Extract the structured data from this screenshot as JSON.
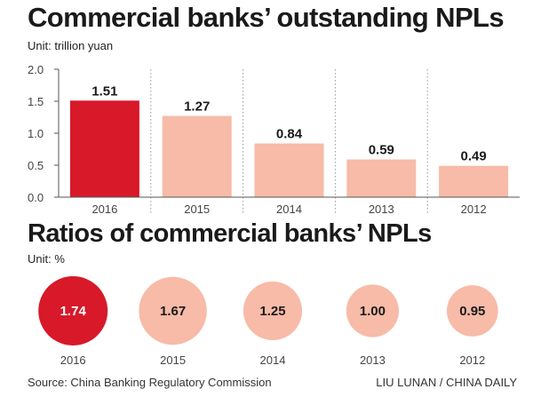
{
  "header": {
    "title_npl": "Commercial banks’ outstanding NPLs",
    "unit_npl": "Unit: trillion yuan",
    "title_ratio": "Ratios of commercial banks’ NPLs",
    "unit_ratio": "Unit: %"
  },
  "footer": {
    "source": "Source: China Banking Regulatory Commission",
    "credit": "LIU LUNAN / CHINA DAILY"
  },
  "colors": {
    "highlight": "#d7192a",
    "muted": "#f7bba8",
    "axis": "#555555",
    "gridline": "#999999",
    "value_light": "#ffffff",
    "value_dark": "#1a1a1a"
  },
  "chart_data": [
    {
      "type": "bar",
      "title": "Commercial banks’ outstanding NPLs",
      "ylabel": "Unit: trillion yuan",
      "categories": [
        "2016",
        "2015",
        "2014",
        "2013",
        "2012"
      ],
      "values": [
        1.51,
        1.27,
        0.84,
        0.59,
        0.49
      ],
      "value_labels": [
        "1.51",
        "1.27",
        "0.84",
        "0.59",
        "0.49"
      ],
      "ylim": [
        0,
        2.0
      ],
      "yticks": [
        "2.0",
        "1.5",
        "1.0",
        "0.5",
        "0.0"
      ],
      "ytick_values": [
        2.0,
        1.5,
        1.0,
        0.5,
        0.0
      ],
      "highlight_index": 0,
      "grid": true
    },
    {
      "type": "bubble",
      "title": "Ratios of commercial banks’ NPLs",
      "ylabel": "Unit: %",
      "categories": [
        "2016",
        "2015",
        "2014",
        "2013",
        "2012"
      ],
      "values": [
        1.74,
        1.67,
        1.25,
        1.0,
        0.95
      ],
      "value_labels": [
        "1.74",
        "1.67",
        "1.25",
        "1.00",
        "0.95"
      ],
      "highlight_index": 0
    }
  ]
}
